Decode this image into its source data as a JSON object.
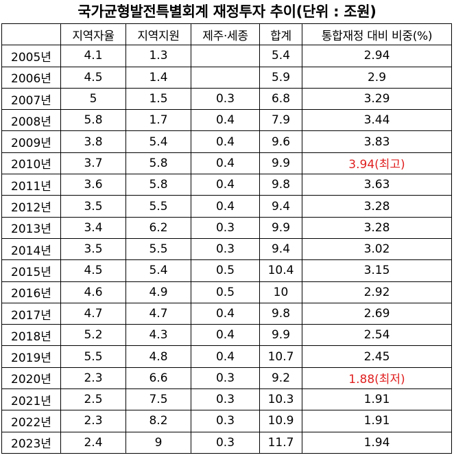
{
  "title": "국가균형발전특별회계 재정투자 추이(단위 : 조원)",
  "colors": {
    "highlight": "#e02020"
  },
  "table": {
    "headers": [
      "",
      "지역자율",
      "지역지원",
      "제주·세종",
      "합계",
      "통합재정 대비 비중(%)"
    ],
    "rows": [
      [
        "2005년",
        "4.1",
        "1.3",
        "",
        "5.4",
        "2.94"
      ],
      [
        "2006년",
        "4.5",
        "1.4",
        "",
        "5.9",
        "2.9"
      ],
      [
        "2007년",
        "5",
        "1.5",
        "0.3",
        "6.8",
        "3.29"
      ],
      [
        "2008년",
        "5.8",
        "1.7",
        "0.4",
        "7.9",
        "3.44"
      ],
      [
        "2009년",
        "3.8",
        "5.4",
        "0.4",
        "9.6",
        "3.83"
      ],
      [
        "2010년",
        "3.7",
        "5.8",
        "0.4",
        "9.9",
        "3.94(최고)"
      ],
      [
        "2011년",
        "3.6",
        "5.8",
        "0.4",
        "9.8",
        "3.63"
      ],
      [
        "2012년",
        "3.5",
        "5.5",
        "0.4",
        "9.4",
        "3.28"
      ],
      [
        "2013년",
        "3.4",
        "6.2",
        "0.3",
        "9.9",
        "3.28"
      ],
      [
        "2014년",
        "3.5",
        "5.5",
        "0.3",
        "9.4",
        "3.02"
      ],
      [
        "2015년",
        "4.5",
        "5.4",
        "0.5",
        "10.4",
        "3.15"
      ],
      [
        "2016년",
        "4.6",
        "4.9",
        "0.5",
        "10",
        "2.92"
      ],
      [
        "2017년",
        "4.7",
        "4.7",
        "0.4",
        "9.8",
        "2.69"
      ],
      [
        "2018년",
        "5.2",
        "4.3",
        "0.4",
        "9.9",
        "2.54"
      ],
      [
        "2019년",
        "5.5",
        "4.8",
        "0.4",
        "10.7",
        "2.45"
      ],
      [
        "2020년",
        "2.3",
        "6.6",
        "0.3",
        "9.2",
        "1.88(최저)"
      ],
      [
        "2021년",
        "2.5",
        "7.5",
        "0.3",
        "10.3",
        "1.91"
      ],
      [
        "2022년",
        "2.3",
        "8.2",
        "0.3",
        "10.9",
        "1.91"
      ],
      [
        "2023년",
        "2.4",
        "9",
        "0.3",
        "11.7",
        "1.94"
      ]
    ],
    "highlight_rows": [
      5,
      15
    ]
  },
  "chart_data": {
    "type": "table",
    "title": "국가균형발전특별회계 재정투자 추이(단위 : 조원)",
    "columns": [
      "",
      "지역자율",
      "지역지원",
      "제주·세종",
      "합계",
      "통합재정 대비 비중(%)"
    ],
    "categories": [
      "2005년",
      "2006년",
      "2007년",
      "2008년",
      "2009년",
      "2010년",
      "2011년",
      "2012년",
      "2013년",
      "2014년",
      "2015년",
      "2016년",
      "2017년",
      "2018년",
      "2019년",
      "2020년",
      "2021년",
      "2022년",
      "2023년"
    ],
    "series": [
      {
        "name": "지역자율",
        "values": [
          4.1,
          4.5,
          5,
          5.8,
          3.8,
          3.7,
          3.6,
          3.5,
          3.4,
          3.5,
          4.5,
          4.6,
          4.7,
          5.2,
          5.5,
          2.3,
          2.5,
          2.3,
          2.4
        ]
      },
      {
        "name": "지역지원",
        "values": [
          1.3,
          1.4,
          1.5,
          1.7,
          5.4,
          5.8,
          5.8,
          5.5,
          6.2,
          5.5,
          5.4,
          4.9,
          4.7,
          4.3,
          4.8,
          6.6,
          7.5,
          8.2,
          9
        ]
      },
      {
        "name": "제주·세종",
        "values": [
          null,
          null,
          0.3,
          0.4,
          0.4,
          0.4,
          0.4,
          0.4,
          0.3,
          0.3,
          0.5,
          0.5,
          0.4,
          0.4,
          0.4,
          0.3,
          0.3,
          0.3,
          0.3
        ]
      },
      {
        "name": "합계",
        "values": [
          5.4,
          5.9,
          6.8,
          7.9,
          9.6,
          9.9,
          9.8,
          9.4,
          9.9,
          9.4,
          10.4,
          10,
          9.8,
          9.9,
          10.7,
          9.2,
          10.3,
          10.9,
          11.7
        ]
      },
      {
        "name": "통합재정 대비 비중(%)",
        "values": [
          2.94,
          2.9,
          3.29,
          3.44,
          3.83,
          3.94,
          3.63,
          3.28,
          3.28,
          3.02,
          3.15,
          2.92,
          2.69,
          2.54,
          2.45,
          1.88,
          1.91,
          1.91,
          1.94
        ]
      }
    ]
  }
}
